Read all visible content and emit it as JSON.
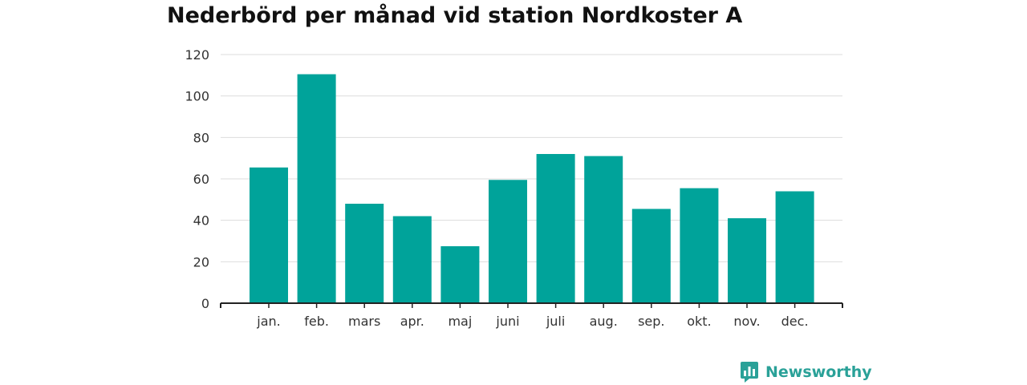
{
  "title": "Nederbörd per månad vid station Nordkoster A",
  "brand": {
    "name": "Newsworthy",
    "icon": "newsworthy-logo-icon",
    "color": "#2aa198"
  },
  "colors": {
    "bar": "#00a39a",
    "grid": "#dddddd",
    "axis": "#222222",
    "tick_text": "#333333"
  },
  "chart_data": {
    "type": "bar",
    "title": "Nederbörd per månad vid station Nordkoster A",
    "categories": [
      "jan.",
      "feb.",
      "mars",
      "apr.",
      "maj",
      "juni",
      "juli",
      "aug.",
      "sep.",
      "okt.",
      "nov.",
      "dec."
    ],
    "values": [
      65.5,
      110.5,
      48.0,
      42.0,
      27.5,
      59.5,
      72.0,
      71.0,
      45.5,
      55.5,
      41.0,
      54.0
    ],
    "ylim": [
      0,
      120
    ],
    "yticks": [
      0,
      20,
      40,
      60,
      80,
      100,
      120
    ],
    "xlabel": "",
    "ylabel": "",
    "grid": true,
    "legend": "none"
  }
}
